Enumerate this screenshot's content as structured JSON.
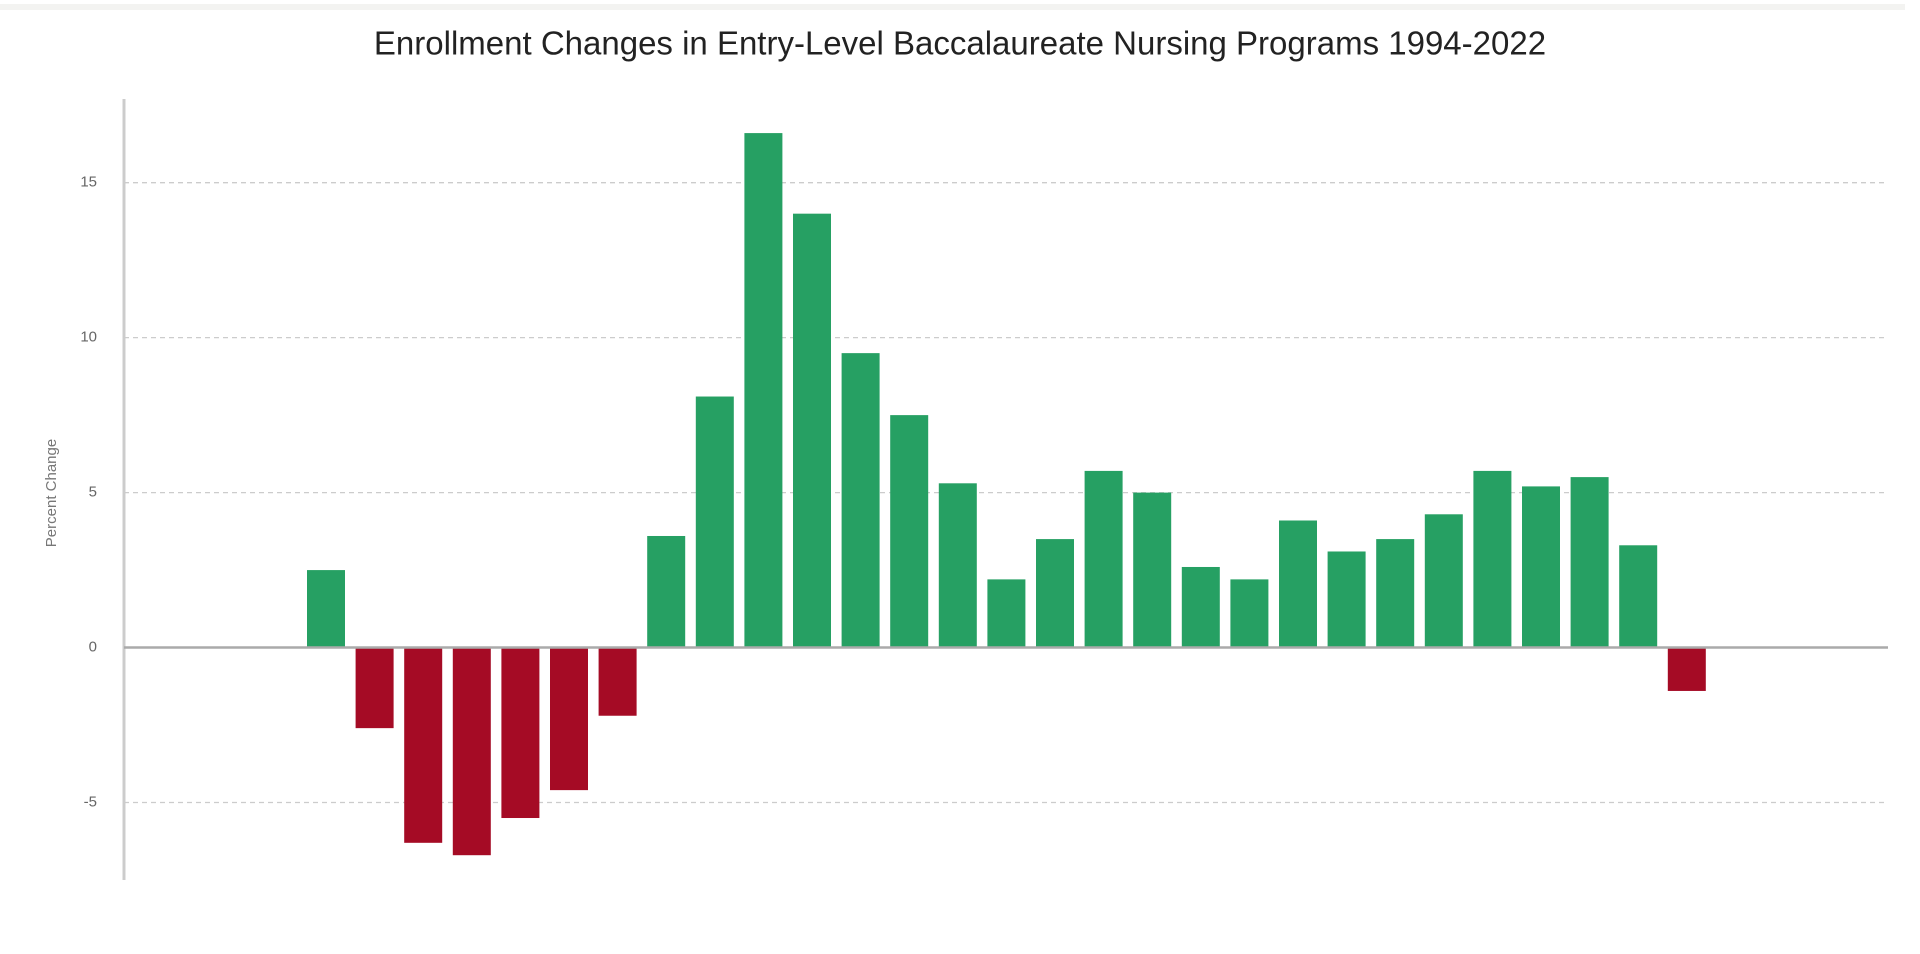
{
  "chart_data": {
    "type": "bar",
    "title": "Enrollment Changes in Entry-Level Baccalaureate Nursing Programs 1994-2022",
    "y_label": "Percent Change",
    "categories": [
      null,
      null,
      null,
      null,
      null,
      null,
      null,
      null,
      null,
      null,
      null,
      null,
      null,
      null,
      null,
      null,
      null,
      null,
      null,
      null,
      null,
      null,
      null,
      null,
      null,
      null,
      null,
      null,
      null
    ],
    "values": [
      2.5,
      -2.6,
      -6.3,
      -6.7,
      -5.5,
      -4.6,
      -2.2,
      3.6,
      8.1,
      16.6,
      14.0,
      9.5,
      7.5,
      5.3,
      2.2,
      3.5,
      5.7,
      5.0,
      2.6,
      2.2,
      4.1,
      3.1,
      3.5,
      4.3,
      5.7,
      5.2,
      5.5,
      3.3,
      -1.4
    ],
    "positive_color": "#26a063",
    "negative_color": "#a50b25",
    "ylim": [
      -7.5,
      17.7
    ],
    "yticks": [
      -5,
      0,
      5,
      10,
      15
    ],
    "grid": true
  }
}
